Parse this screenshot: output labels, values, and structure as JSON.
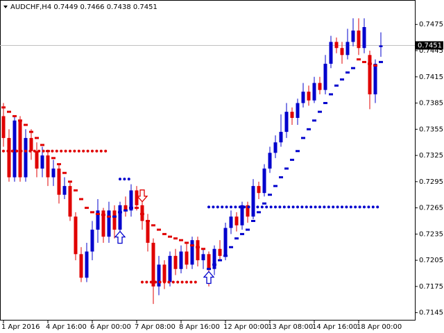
{
  "chart_data": {
    "type": "candlestick",
    "title": "AUDCHF,H4 0.7449 0.7466 0.7438 0.7451",
    "categories": [
      "1 Apr 2016",
      null,
      null,
      null,
      null,
      null,
      null,
      null,
      "4 Apr 16:00",
      null,
      null,
      null,
      null,
      null,
      null,
      null,
      "6 Apr 00:00",
      null,
      null,
      null,
      null,
      null,
      null,
      null,
      "7 Apr 08:00",
      null,
      null,
      null,
      null,
      null,
      null,
      null,
      "8 Apr 16:00",
      null,
      null,
      null,
      null,
      null,
      null,
      null,
      "12 Apr 00:00",
      null,
      null,
      null,
      null,
      null,
      null,
      null,
      "13 Apr 08:00",
      null,
      null,
      null,
      null,
      null,
      null,
      null,
      "14 Apr 16:00",
      null,
      null,
      null,
      null,
      null,
      null,
      null,
      "18 Apr 00:00",
      null,
      null,
      null,
      null
    ],
    "open": [
      0.737,
      0.7345,
      0.73,
      0.7365,
      0.73,
      0.7345,
      0.733,
      0.731,
      0.7325,
      0.73,
      0.731,
      0.728,
      0.729,
      0.7255,
      0.7212,
      0.7185,
      0.7215,
      0.724,
      0.7262,
      0.7232,
      0.7262,
      0.724,
      0.7268,
      0.7262,
      0.7285,
      0.7268,
      0.725,
      0.7225,
      0.7175,
      0.72,
      0.718,
      0.721,
      0.7195,
      0.7215,
      0.72,
      0.7228,
      0.7205,
      0.7212,
      0.7195,
      0.7218,
      0.721,
      0.7242,
      0.7255,
      0.7245,
      0.7268,
      0.7255,
      0.729,
      0.7282,
      0.731,
      0.7328,
      0.734,
      0.7352,
      0.7375,
      0.7368,
      0.7385,
      0.7398,
      0.7388,
      0.7408,
      0.74,
      0.743,
      0.7455,
      0.7448,
      0.744,
      0.7455,
      0.7468,
      0.7448,
      0.744,
      0.7395,
      0.7449
    ],
    "high": [
      0.7385,
      0.7355,
      0.737,
      0.737,
      0.7355,
      0.7355,
      0.734,
      0.7335,
      0.733,
      0.732,
      0.7315,
      0.73,
      0.7295,
      0.726,
      0.722,
      0.7225,
      0.725,
      0.7275,
      0.7265,
      0.7272,
      0.7268,
      0.7272,
      0.7278,
      0.7292,
      0.729,
      0.7275,
      0.7258,
      0.723,
      0.721,
      0.7205,
      0.7215,
      0.7218,
      0.7222,
      0.7225,
      0.7232,
      0.7232,
      0.7218,
      0.7215,
      0.7222,
      0.7228,
      0.7248,
      0.7262,
      0.726,
      0.7272,
      0.7272,
      0.7298,
      0.7295,
      0.7315,
      0.7335,
      0.7348,
      0.7372,
      0.7385,
      0.738,
      0.739,
      0.7408,
      0.7405,
      0.7415,
      0.7415,
      0.744,
      0.7462,
      0.746,
      0.7455,
      0.747,
      0.7482,
      0.7482,
      0.7482,
      0.7445,
      0.7435,
      0.7466
    ],
    "low": [
      0.7335,
      0.7295,
      0.7295,
      0.7295,
      0.7295,
      0.732,
      0.73,
      0.73,
      0.729,
      0.729,
      0.727,
      0.7275,
      0.725,
      0.7205,
      0.718,
      0.718,
      0.7205,
      0.7225,
      0.7225,
      0.7225,
      0.723,
      0.7235,
      0.7255,
      0.7255,
      0.7262,
      0.724,
      0.7215,
      0.7155,
      0.7165,
      0.7172,
      0.7175,
      0.7188,
      0.719,
      0.7195,
      0.7195,
      0.7198,
      0.7195,
      0.7175,
      0.7188,
      0.7205,
      0.7205,
      0.7235,
      0.7238,
      0.724,
      0.7248,
      0.7252,
      0.7275,
      0.7278,
      0.7305,
      0.7322,
      0.7335,
      0.7345,
      0.736,
      0.736,
      0.738,
      0.7382,
      0.7385,
      0.7395,
      0.7395,
      0.7425,
      0.7442,
      0.743,
      0.7435,
      0.745,
      0.744,
      0.7442,
      0.7378,
      0.7385,
      0.7438
    ],
    "close": [
      0.7345,
      0.73,
      0.7365,
      0.73,
      0.7345,
      0.733,
      0.731,
      0.7325,
      0.73,
      0.731,
      0.728,
      0.729,
      0.7255,
      0.7212,
      0.7185,
      0.7215,
      0.724,
      0.7262,
      0.7232,
      0.7262,
      0.724,
      0.7268,
      0.7262,
      0.7285,
      0.7268,
      0.725,
      0.7225,
      0.7175,
      0.72,
      0.718,
      0.721,
      0.7195,
      0.7215,
      0.72,
      0.7228,
      0.7205,
      0.7212,
      0.7195,
      0.7218,
      0.721,
      0.7242,
      0.7255,
      0.7245,
      0.7268,
      0.7255,
      0.729,
      0.7282,
      0.731,
      0.7328,
      0.734,
      0.7352,
      0.7375,
      0.7368,
      0.7385,
      0.7398,
      0.7388,
      0.7408,
      0.74,
      0.743,
      0.7455,
      0.7448,
      0.744,
      0.7455,
      0.7468,
      0.7448,
      0.7472,
      0.7395,
      0.743,
      0.7451
    ],
    "up_color": "#0000cd",
    "down_color": "#e00000",
    "overlays": [
      {
        "color": "#e00000",
        "values": [
          0.738,
          0.7375,
          0.737,
          0.7365,
          0.736,
          0.7352,
          0.7345,
          0.7337,
          0.733,
          0.7322,
          0.7315,
          0.7305,
          0.7295,
          0.7285,
          0.7275,
          0.7265,
          0.726,
          0.7258,
          0.7257,
          0.7255,
          null,
          null,
          null,
          null,
          0.7265,
          0.7258,
          0.725,
          0.7245,
          0.724,
          0.7235,
          0.7232,
          0.723,
          0.7228,
          0.7225,
          0.7222,
          0.722,
          0.7218,
          null,
          null,
          null,
          null,
          null,
          null,
          null,
          null,
          null,
          null,
          null,
          null,
          null,
          null,
          null,
          null,
          null,
          null,
          null,
          null,
          null,
          null,
          null,
          null,
          null,
          null,
          null,
          0.7435,
          0.7432,
          0.743,
          0.7428,
          null
        ]
      },
      {
        "color": "#0000cd",
        "values": [
          null,
          null,
          null,
          null,
          null,
          null,
          null,
          null,
          null,
          null,
          null,
          null,
          null,
          null,
          null,
          null,
          null,
          null,
          null,
          null,
          0.7255,
          0.726,
          0.7262,
          0.7265,
          null,
          null,
          null,
          null,
          null,
          null,
          null,
          null,
          null,
          null,
          null,
          null,
          null,
          0.7195,
          0.72,
          0.7205,
          0.721,
          0.722,
          0.723,
          0.7235,
          0.724,
          0.725,
          0.726,
          0.727,
          0.728,
          0.729,
          0.73,
          0.731,
          0.732,
          0.733,
          0.7345,
          0.7355,
          0.7365,
          0.7375,
          0.7385,
          0.7395,
          0.7405,
          0.7412,
          0.742,
          0.7425,
          null,
          null,
          null,
          null,
          0.7432
        ]
      }
    ],
    "levels": [
      {
        "color": "#e00000",
        "value": 0.733,
        "start": 0,
        "end": 19
      },
      {
        "color": "#0000cd",
        "value": 0.7298,
        "start": 21,
        "end": 23
      },
      {
        "color": "#e00000",
        "value": 0.718,
        "start": 25,
        "end": 35
      },
      {
        "color": "#0000cd",
        "value": 0.7266,
        "start": 37,
        "end": 68
      }
    ],
    "arrows": [
      {
        "color": "#0000cd",
        "direction": "up",
        "index": 21,
        "value": 0.7238
      },
      {
        "color": "#e00000",
        "direction": "down",
        "index": 25,
        "value": 0.7272
      },
      {
        "color": "#0000cd",
        "direction": "up",
        "index": 37,
        "value": 0.7192
      }
    ],
    "current": 0.7451,
    "ylim": [
      0.7136,
      0.7503
    ],
    "yticks": [
      0.7475,
      0.7445,
      0.7415,
      0.7385,
      0.7355,
      0.7325,
      0.7295,
      0.7265,
      0.7235,
      0.7205,
      0.7175,
      0.7145
    ]
  }
}
